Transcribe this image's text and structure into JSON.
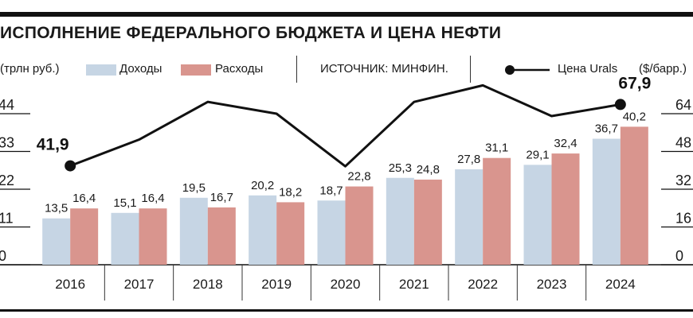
{
  "header": {
    "title": "ИСПОЛНЕНИЕ ФЕДЕРАЛЬНОГО БЮДЖЕТА И ЦЕНА НЕФТИ",
    "left_unit": "(трлн руб.)",
    "source": "ИСТОЧНИК: МИНФИН.",
    "right_unit": "($/барр.)"
  },
  "legend": {
    "income": "Доходы",
    "expense": "Расходы",
    "oil": "Цена Urals"
  },
  "colors": {
    "income": "#c6d5e4",
    "expense": "#d9958e",
    "line": "#111111",
    "grid": "#111111"
  },
  "chart_data": {
    "type": "bar",
    "categories": [
      "2016",
      "2017",
      "2018",
      "2019",
      "2020",
      "2021",
      "2022",
      "2023",
      "2024"
    ],
    "series": [
      {
        "name": "Доходы",
        "values": [
          13.5,
          15.1,
          19.5,
          20.2,
          18.7,
          25.3,
          27.8,
          29.1,
          36.7
        ],
        "labels": [
          "13,5",
          "15,1",
          "19,5",
          "20,2",
          "18,7",
          "25,3",
          "27,8",
          "29,1",
          "36,7"
        ]
      },
      {
        "name": "Расходы",
        "values": [
          16.4,
          16.4,
          16.7,
          18.2,
          22.8,
          24.8,
          31.1,
          32.4,
          40.2
        ],
        "labels": [
          "16,4",
          "16,4",
          "16,7",
          "18,2",
          "22,8",
          "24,8",
          "31,1",
          "32,4",
          "40,2"
        ]
      }
    ],
    "line_series": {
      "name": "Цена Urals",
      "values": [
        41.9,
        53.0,
        69.0,
        64.0,
        41.7,
        69.0,
        76.0,
        63.0,
        67.9
      ],
      "labeled": [
        {
          "index": 0,
          "label": "41,9"
        },
        {
          "index": 8,
          "label": "67,9"
        }
      ]
    },
    "left_axis": {
      "ylim": [
        0,
        44
      ],
      "ticks": [
        0,
        11,
        22,
        33,
        44
      ]
    },
    "right_axis": {
      "ylim": [
        0,
        64
      ],
      "ticks": [
        0,
        16,
        32,
        48,
        64
      ]
    },
    "grid": "horizontal tick marks only"
  }
}
